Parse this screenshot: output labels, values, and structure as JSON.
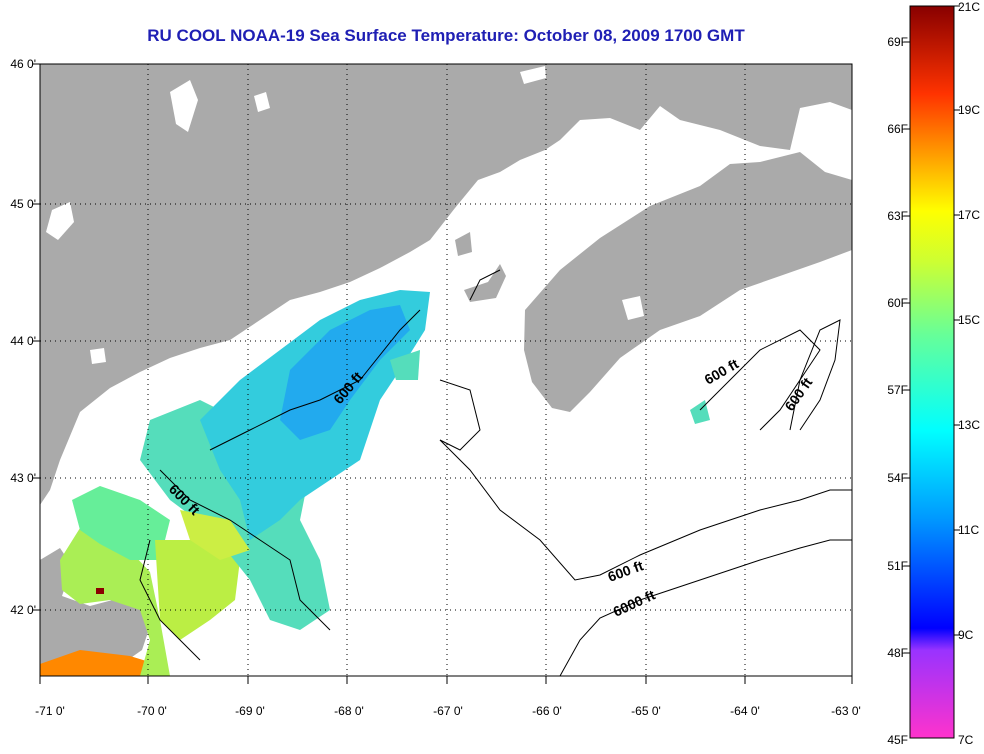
{
  "title": "RU COOL  NOAA-19  Sea Surface Temperature:  October 08, 2009 1700 GMT",
  "axes": {
    "x_ticks": [
      "-71 0'",
      "-70 0'",
      "-69 0'",
      "-68 0'",
      "-67 0'",
      "-66 0'",
      "-65 0'",
      "-64 0'",
      "-63 0'"
    ],
    "y_ticks": [
      "46 0'",
      "45 0'",
      "44 0'",
      "43 0'",
      "42 0'"
    ]
  },
  "contour_labels": [
    "600 ft",
    "600 ft",
    "600 ft",
    "600 ft",
    "600 ft",
    "6000 ft"
  ],
  "colorbar": {
    "fahrenheit": [
      "69F",
      "66F",
      "63F",
      "60F",
      "57F",
      "54F",
      "51F",
      "48F",
      "45F"
    ],
    "celsius": [
      "21C",
      "19C",
      "17C",
      "15C",
      "13C",
      "11C",
      "9C",
      "7C"
    ]
  },
  "colors": {
    "land": "#aaaaaa",
    "title": "#1f1fb4",
    "ocean_no_data": "#ffffff"
  }
}
